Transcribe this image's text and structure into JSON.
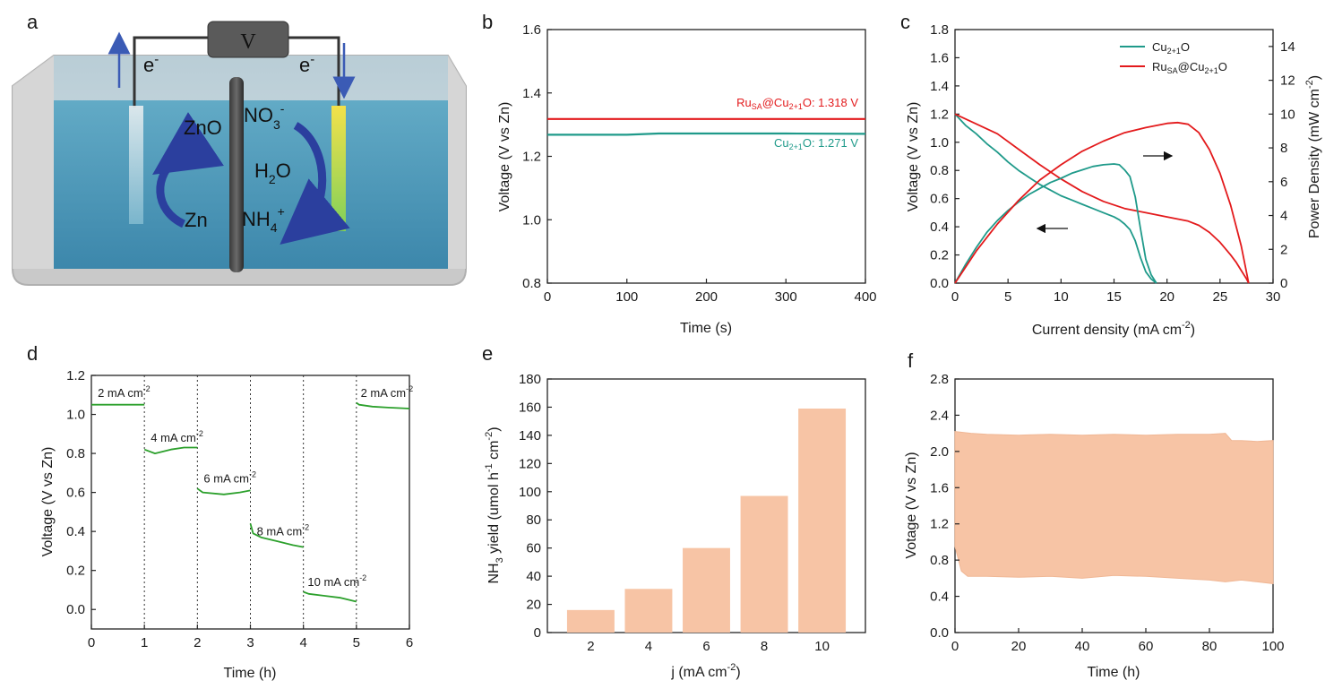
{
  "panel_labels": [
    "a",
    "b",
    "c",
    "d",
    "e",
    "f"
  ],
  "schematic": {
    "meter": "V",
    "electron_left": "e",
    "electron_right": "e",
    "znO": "ZnO",
    "zn": "Zn",
    "no3": "NO",
    "no3_sub": "3",
    "no3_sup": "-",
    "h2o": "H",
    "h2o_sub": "2",
    "h2o_end": "O",
    "nh4": "NH",
    "nh4_sub": "4",
    "nh4_sup": "+"
  },
  "colors": {
    "teal": "#1f9a8a",
    "red": "#e31a1c",
    "green": "#2ca02c",
    "salmon": "#f7c4a5"
  },
  "chart_data": [
    {
      "panel": "b",
      "type": "line",
      "xlabel": "Time (s)",
      "ylabel": "Voltage (V vs Zn)",
      "xlim": [
        0,
        400
      ],
      "ylim": [
        0.8,
        1.6
      ],
      "xticks": [
        "0",
        "100",
        "200",
        "300",
        "400"
      ],
      "yticks": [
        "0.8",
        "1.0",
        "1.2",
        "1.4",
        "1.6"
      ],
      "series": [
        {
          "name": "RuSA@Cu2+1O",
          "color": "#e31a1c",
          "x": [
            0,
            100,
            200,
            300,
            400
          ],
          "y": [
            1.318,
            1.318,
            1.318,
            1.318,
            1.318
          ]
        },
        {
          "name": "Cu2+1O",
          "color": "#1f9a8a",
          "x": [
            0,
            100,
            140,
            200,
            300,
            400
          ],
          "y": [
            1.268,
            1.268,
            1.272,
            1.272,
            1.272,
            1.271
          ]
        }
      ],
      "annotations": [
        {
          "base": "Ru",
          "sub1": "SA",
          "mid": "@Cu",
          "sub2": "2+1",
          "tail": "O: 1.318 V"
        },
        {
          "base": "Cu",
          "sub1": "2+1",
          "tail": "O: 1.271 V"
        }
      ]
    },
    {
      "panel": "c",
      "type": "line",
      "xlabel": "Current density (mA cm",
      "xlabel_sup": "-2",
      "xlabel_end": ")",
      "ylabel": "Voltage (V vs Zn)",
      "y2label": "Power Density (mW cm",
      "y2label_sup": "-2",
      "y2label_end": ")",
      "xlim": [
        0,
        30
      ],
      "ylim": [
        0,
        1.8
      ],
      "y2lim": [
        0,
        15
      ],
      "xticks": [
        "0",
        "5",
        "10",
        "15",
        "20",
        "25",
        "30"
      ],
      "yticks": [
        "0.0",
        "0.2",
        "0.4",
        "0.6",
        "0.8",
        "1.0",
        "1.2",
        "1.4",
        "1.6",
        "1.8"
      ],
      "y2ticks": [
        "0",
        "2",
        "4",
        "6",
        "8",
        "10",
        "12",
        "14"
      ],
      "legend": [
        {
          "base": "Cu",
          "sub": "2+1",
          "tail": "O",
          "color": "#1f9a8a"
        },
        {
          "base": "Ru",
          "sub": "SA",
          "mid": "@Cu",
          "sub2": "2+1",
          "tail": "O",
          "color": "#e31a1c"
        }
      ],
      "series": [
        {
          "name": "Cu2+1O voltage",
          "axis": "left",
          "color": "#1f9a8a",
          "x": [
            0,
            1,
            2,
            3,
            4,
            5,
            6,
            7,
            8,
            9,
            10,
            11,
            12,
            13,
            14,
            15,
            15.5,
            16,
            16.5,
            17,
            17.5,
            18,
            18.5,
            19
          ],
          "y": [
            1.2,
            1.12,
            1.06,
            0.99,
            0.93,
            0.86,
            0.8,
            0.75,
            0.7,
            0.66,
            0.62,
            0.59,
            0.56,
            0.53,
            0.5,
            0.47,
            0.45,
            0.42,
            0.38,
            0.3,
            0.18,
            0.08,
            0.03,
            0.0
          ]
        },
        {
          "name": "RuSA@Cu2+1O voltage",
          "axis": "left",
          "color": "#e31a1c",
          "x": [
            0,
            2,
            4,
            6,
            8,
            10,
            12,
            14,
            16,
            18,
            20,
            22,
            23,
            24,
            25,
            26,
            26.5,
            27,
            27.5,
            27.7
          ],
          "y": [
            1.2,
            1.13,
            1.06,
            0.95,
            0.84,
            0.74,
            0.65,
            0.58,
            0.53,
            0.5,
            0.47,
            0.44,
            0.41,
            0.36,
            0.29,
            0.2,
            0.15,
            0.09,
            0.03,
            0.0
          ]
        },
        {
          "name": "Cu2+1O power",
          "axis": "right",
          "color": "#1f9a8a",
          "x": [
            0,
            1,
            2,
            3,
            4,
            5,
            6,
            7,
            8,
            9,
            10,
            11,
            12,
            13,
            14,
            15,
            15.5,
            16,
            16.5,
            17,
            17.5,
            18,
            18.5,
            19
          ],
          "y": [
            0,
            1.1,
            2.1,
            3.0,
            3.7,
            4.3,
            4.8,
            5.25,
            5.6,
            5.95,
            6.2,
            6.5,
            6.7,
            6.9,
            7.0,
            7.05,
            7.0,
            6.7,
            6.3,
            5.1,
            3.2,
            1.4,
            0.5,
            0.0
          ]
        },
        {
          "name": "RuSA@Cu2+1O power",
          "axis": "right",
          "color": "#e31a1c",
          "x": [
            0,
            2,
            4,
            6,
            8,
            10,
            12,
            14,
            16,
            18,
            20,
            21,
            22,
            23,
            24,
            25,
            26,
            27,
            27.7
          ],
          "y": [
            0,
            1.9,
            3.5,
            4.9,
            6.1,
            7.0,
            7.8,
            8.4,
            8.9,
            9.2,
            9.45,
            9.5,
            9.4,
            8.9,
            7.9,
            6.5,
            4.6,
            2.2,
            0.0
          ]
        }
      ]
    },
    {
      "panel": "d",
      "type": "line",
      "xlabel": "Time (h)",
      "ylabel": "Voltage (V vs Zn)",
      "xlim": [
        0,
        6
      ],
      "ylim": [
        -0.1,
        1.2
      ],
      "xticks": [
        "0",
        "1",
        "2",
        "3",
        "4",
        "5",
        "6"
      ],
      "yticks": [
        "0.0",
        "0.2",
        "0.4",
        "0.6",
        "0.8",
        "1.0",
        "1.2"
      ],
      "dashed_x": [
        1,
        2,
        3,
        4,
        5
      ],
      "series": [
        {
          "name": "2 mA",
          "color": "#2ca02c",
          "x": [
            0,
            0.5,
            1
          ],
          "y": [
            1.05,
            1.05,
            1.05
          ]
        },
        {
          "name": "4 mA",
          "color": "#2ca02c",
          "x": [
            1,
            1.2,
            1.5,
            1.75,
            2
          ],
          "y": [
            0.82,
            0.8,
            0.82,
            0.83,
            0.83
          ]
        },
        {
          "name": "6 mA",
          "color": "#2ca02c",
          "x": [
            2,
            2.1,
            2.5,
            2.8,
            3
          ],
          "y": [
            0.62,
            0.6,
            0.59,
            0.6,
            0.61
          ]
        },
        {
          "name": "8 mA",
          "color": "#2ca02c",
          "x": [
            3,
            3.05,
            3.2,
            3.5,
            3.8,
            4
          ],
          "y": [
            0.44,
            0.39,
            0.37,
            0.35,
            0.33,
            0.32
          ]
        },
        {
          "name": "10 mA",
          "color": "#2ca02c",
          "x": [
            4,
            4.1,
            4.4,
            4.7,
            5
          ],
          "y": [
            0.09,
            0.08,
            0.07,
            0.06,
            0.04
          ]
        },
        {
          "name": "2 mA end",
          "color": "#2ca02c",
          "x": [
            5,
            5.05,
            5.3,
            5.6,
            6
          ],
          "y": [
            1.06,
            1.05,
            1.04,
            1.035,
            1.03
          ]
        }
      ],
      "labels": [
        {
          "text": "2 mA cm",
          "sup": "-2",
          "x": 0.12,
          "y": 1.09
        },
        {
          "text": "4 mA cm",
          "sup": "-2",
          "x": 1.12,
          "y": 0.86
        },
        {
          "text": "6 mA cm",
          "sup": "-2",
          "x": 2.12,
          "y": 0.65
        },
        {
          "text": "8 mA cm",
          "sup": "-2",
          "x": 3.12,
          "y": 0.38
        },
        {
          "text": "10 mA cm",
          "sup": "-2",
          "x": 4.08,
          "y": 0.12
        },
        {
          "text": "2 mA cm",
          "sup": "-2",
          "x": 5.08,
          "y": 1.09
        }
      ]
    },
    {
      "panel": "e",
      "type": "bar",
      "xlabel": "j (mA cm",
      "xlabel_sup": "-2",
      "xlabel_end": ")",
      "ylabel": "NH",
      "ylabel_sub": "3",
      "ylabel_mid": " yield (umol h",
      "ylabel_sup": "-1",
      "ylabel_mid2": " cm",
      "ylabel_sup2": "-2",
      "ylabel_end": ")",
      "categories": [
        "2",
        "4",
        "6",
        "8",
        "10"
      ],
      "values": [
        16,
        31,
        60,
        97,
        159
      ],
      "ylim": [
        0,
        180
      ],
      "yticks": [
        "0",
        "20",
        "40",
        "60",
        "80",
        "100",
        "120",
        "140",
        "160",
        "180"
      ]
    },
    {
      "panel": "f",
      "type": "area",
      "xlabel": "Time (h)",
      "ylabel": "Votage (V vs Zn)",
      "xlim": [
        0,
        100
      ],
      "ylim": [
        0,
        2.8
      ],
      "xticks": [
        "0",
        "20",
        "40",
        "60",
        "80",
        "100"
      ],
      "yticks": [
        "0.0",
        "0.4",
        "0.8",
        "1.2",
        "1.6",
        "2.0",
        "2.4",
        "2.8"
      ],
      "upper": {
        "x": [
          0,
          5,
          10,
          20,
          30,
          40,
          50,
          60,
          70,
          80,
          85,
          87,
          90,
          95,
          100
        ],
        "y": [
          2.22,
          2.2,
          2.19,
          2.18,
          2.19,
          2.18,
          2.19,
          2.18,
          2.19,
          2.19,
          2.2,
          2.12,
          2.12,
          2.11,
          2.12
        ]
      },
      "lower": {
        "x": [
          0,
          2,
          4,
          10,
          20,
          30,
          40,
          50,
          60,
          70,
          80,
          85,
          90,
          95,
          100
        ],
        "y": [
          0.95,
          0.68,
          0.62,
          0.62,
          0.61,
          0.62,
          0.6,
          0.63,
          0.62,
          0.6,
          0.58,
          0.56,
          0.58,
          0.56,
          0.54
        ]
      }
    }
  ]
}
